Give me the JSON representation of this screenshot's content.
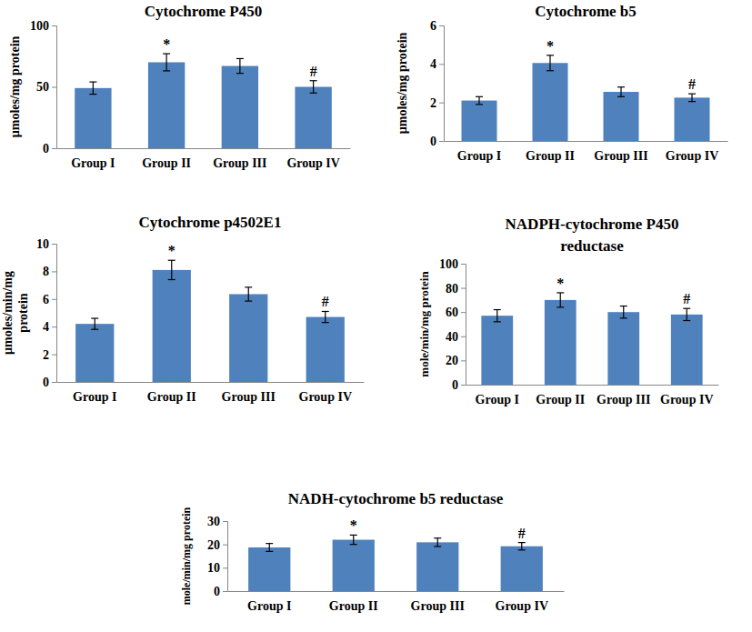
{
  "chart_data": [
    {
      "type": "bar",
      "title": "Cytochrome P450",
      "y_label": "µmoles/mg protein",
      "categories": [
        "Group I",
        "Group II",
        "Group III",
        "Group IV"
      ],
      "values": [
        49,
        70,
        67,
        50
      ],
      "errors": [
        5,
        7,
        6,
        5
      ],
      "color": "#4f81bd",
      "annotations": [
        {
          "category": "Group II",
          "text": "*"
        },
        {
          "category": "Group IV",
          "text": "#"
        }
      ],
      "ylim": [
        0,
        100
      ],
      "yticks": [
        0,
        50,
        100
      ]
    },
    {
      "type": "bar",
      "title": "Cytochrome b5",
      "y_label": "µmoles/mg protein",
      "categories": [
        "Group I",
        "Group II",
        "Group III",
        "Group IV"
      ],
      "values": [
        2.1,
        4.05,
        2.55,
        2.25
      ],
      "errors": [
        0.2,
        0.4,
        0.25,
        0.2
      ],
      "color": "#4f81bd",
      "annotations": [
        {
          "category": "Group II",
          "text": "*"
        },
        {
          "category": "Group IV",
          "text": "#"
        }
      ],
      "ylim": [
        0,
        6
      ],
      "yticks": [
        0,
        2,
        4,
        6
      ]
    },
    {
      "type": "bar",
      "title": "Cytochrome p4502E1",
      "y_label": "µmoles/min/mg protein",
      "categories": [
        "Group I",
        "Group II",
        "Group III",
        "Group IV"
      ],
      "values": [
        4.2,
        8.1,
        6.35,
        4.7
      ],
      "errors": [
        0.4,
        0.7,
        0.5,
        0.4
      ],
      "color": "#4f81bd",
      "annotations": [
        {
          "category": "Group II",
          "text": "*"
        },
        {
          "category": "Group IV",
          "text": "#"
        }
      ],
      "ylim": [
        0,
        10
      ],
      "yticks": [
        0,
        2,
        4,
        6,
        8,
        10
      ]
    },
    {
      "type": "bar",
      "title": "NADPH-cytochrome P450 reductase",
      "y_label": "mole/min/mg protein",
      "categories": [
        "Group I",
        "Group II",
        "Group III",
        "Group IV"
      ],
      "values": [
        57,
        70,
        60,
        58
      ],
      "errors": [
        5,
        6,
        5,
        5
      ],
      "color": "#4f81bd",
      "annotations": [
        {
          "category": "Group II",
          "text": "*"
        },
        {
          "category": "Group IV",
          "text": "#"
        }
      ],
      "ylim": [
        0,
        100
      ],
      "yticks": [
        0,
        20,
        40,
        60,
        80,
        100
      ]
    },
    {
      "type": "bar",
      "title": "NADH-cytochrome b5 reductase",
      "y_label": "mole/min/mg protein",
      "categories": [
        "Group I",
        "Group II",
        "Group III",
        "Group IV"
      ],
      "values": [
        18.7,
        22,
        20.9,
        19.2
      ],
      "errors": [
        1.7,
        2,
        1.8,
        1.6
      ],
      "color": "#4f81bd",
      "annotations": [
        {
          "category": "Group II",
          "text": "*"
        },
        {
          "category": "Group IV",
          "text": "#"
        }
      ],
      "ylim": [
        0,
        30
      ],
      "yticks": [
        0,
        10,
        20,
        30
      ]
    }
  ]
}
